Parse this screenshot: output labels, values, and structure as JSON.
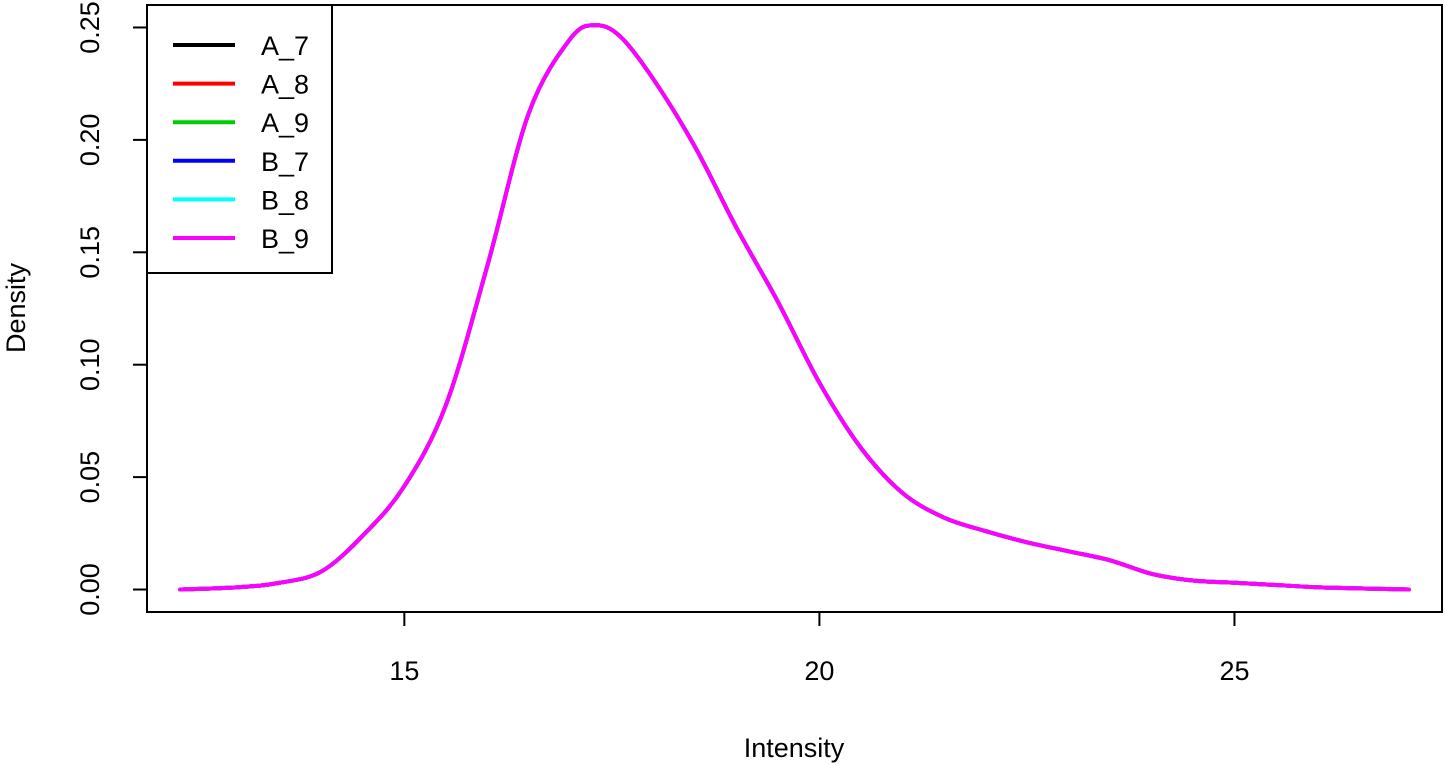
{
  "chart_data": {
    "type": "line",
    "xlabel": "Intensity",
    "ylabel": "Density",
    "xlim": [
      11.9,
      27.5
    ],
    "ylim": [
      -0.01,
      0.26
    ],
    "x_ticks": [
      15,
      20,
      25
    ],
    "x_tick_labels": [
      "15",
      "20",
      "25"
    ],
    "y_ticks": [
      0.0,
      0.05,
      0.1,
      0.15,
      0.2,
      0.25
    ],
    "y_tick_labels": [
      "0.00",
      "0.05",
      "0.10",
      "0.15",
      "0.20",
      "0.25"
    ],
    "grid": false,
    "legend_position": "top-left",
    "series": [
      {
        "name": "A_7",
        "color": "#000000"
      },
      {
        "name": "A_8",
        "color": "#ff0000"
      },
      {
        "name": "A_9",
        "color": "#00cd00"
      },
      {
        "name": "B_7",
        "color": "#0000ff"
      },
      {
        "name": "B_8",
        "color": "#00ffff"
      },
      {
        "name": "B_9",
        "color": "#ff00ff"
      }
    ],
    "x": [
      12.3,
      13.0,
      13.5,
      14.0,
      14.5,
      15.0,
      15.5,
      16.0,
      16.5,
      17.0,
      17.3,
      17.6,
      18.0,
      18.5,
      19.0,
      19.5,
      20.0,
      20.5,
      21.0,
      21.5,
      22.0,
      22.5,
      23.0,
      23.5,
      24.0,
      24.5,
      25.0,
      25.5,
      26.0,
      26.5,
      27.1
    ],
    "y": [
      0.0,
      0.001,
      0.003,
      0.008,
      0.024,
      0.046,
      0.082,
      0.144,
      0.212,
      0.245,
      0.251,
      0.246,
      0.227,
      0.197,
      0.161,
      0.128,
      0.092,
      0.063,
      0.043,
      0.032,
      0.026,
      0.021,
      0.017,
      0.013,
      0.007,
      0.004,
      0.003,
      0.002,
      0.001,
      0.0005,
      0.0
    ]
  }
}
